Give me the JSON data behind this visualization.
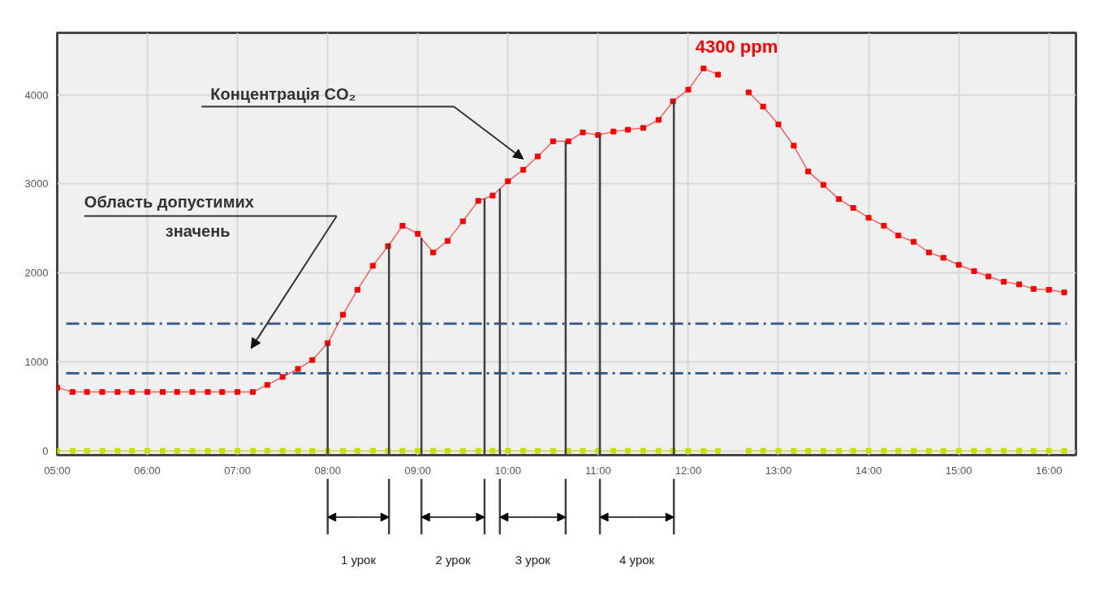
{
  "chart_data": {
    "type": "line",
    "x": [
      5.0,
      5.17,
      5.33,
      5.5,
      5.67,
      5.83,
      6.0,
      6.17,
      6.33,
      6.5,
      6.67,
      6.83,
      7.0,
      7.17,
      7.33,
      7.5,
      7.67,
      7.83,
      8.0,
      8.17,
      8.33,
      8.5,
      8.67,
      8.83,
      9.0,
      9.17,
      9.33,
      9.5,
      9.67,
      9.83,
      10.0,
      10.17,
      10.33,
      10.5,
      10.67,
      10.83,
      11.0,
      11.17,
      11.33,
      11.5,
      11.67,
      11.83,
      12.0,
      12.17,
      12.33,
      12.5,
      12.67,
      12.83,
      13.0,
      13.17,
      13.33,
      13.5,
      13.67,
      13.83,
      14.0,
      14.17,
      14.33,
      14.5,
      14.67,
      14.83,
      15.0,
      15.17,
      15.33,
      15.5,
      15.67,
      15.83,
      16.0,
      16.17
    ],
    "series": [
      {
        "color": "#ff0000",
        "values": [
          710,
          660,
          660,
          660,
          660,
          660,
          660,
          660,
          660,
          660,
          660,
          660,
          660,
          660,
          740,
          830,
          920,
          1020,
          1210,
          1530,
          1810,
          2080,
          2300,
          2530,
          2440,
          2230,
          2360,
          2580,
          2810,
          2870,
          3030,
          3160,
          3310,
          3480,
          3480,
          3580,
          3550,
          3590,
          3610,
          3630,
          3720,
          3930,
          4060,
          4300,
          4230,
          null,
          4030,
          3870,
          3670,
          3430,
          3140,
          2990,
          2830,
          2730,
          2620,
          2530,
          2420,
          2350,
          2230,
          2170,
          2090,
          2020,
          1960,
          1900,
          1870,
          1820,
          1810,
          1780
        ]
      },
      {
        "color": "#c8e000",
        "values": [
          0,
          0,
          0,
          0,
          0,
          0,
          0,
          0,
          0,
          0,
          0,
          0,
          0,
          0,
          0,
          0,
          0,
          0,
          0,
          0,
          0,
          0,
          0,
          0,
          0,
          0,
          0,
          0,
          0,
          0,
          0,
          0,
          0,
          0,
          0,
          0,
          0,
          0,
          0,
          0,
          0,
          0,
          0,
          0,
          0,
          null,
          0,
          0,
          0,
          0,
          0,
          0,
          0,
          0,
          0,
          0,
          0,
          0,
          0,
          0,
          0,
          0,
          0,
          0,
          0,
          0,
          0,
          0
        ]
      }
    ],
    "xlim": [
      5,
      16.3
    ],
    "ylim": [
      -50,
      4700
    ],
    "xticks": [
      {
        "value": 5,
        "label": "05:00"
      },
      {
        "value": 6,
        "label": "06:00"
      },
      {
        "value": 7,
        "label": "07:00"
      },
      {
        "value": 8,
        "label": "08:00"
      },
      {
        "value": 9,
        "label": "09:00"
      },
      {
        "value": 10,
        "label": "10:00"
      },
      {
        "value": 11,
        "label": "11:00"
      },
      {
        "value": 12,
        "label": "12:00"
      },
      {
        "value": 13,
        "label": "13:00"
      },
      {
        "value": 14,
        "label": "14:00"
      },
      {
        "value": 15,
        "label": "15:00"
      },
      {
        "value": 16,
        "label": "16:00"
      }
    ],
    "yticks": [
      0,
      1000,
      2000,
      3000,
      4000
    ],
    "grid": true,
    "marker": "square",
    "annotations": [
      {
        "text": "4300 ppm",
        "x": 12.17,
        "y": 4300
      },
      "Концентрація CO₂",
      "Область допустимих значень",
      "1 урок",
      "2 урок",
      "3 урок",
      "4 урок"
    ],
    "ref_lines": [
      {
        "axis": "y",
        "value": 1430,
        "label": null,
        "color": "#3a5f8f",
        "line_style": "dashed"
      },
      {
        "axis": "y",
        "value": 870,
        "label": null,
        "color": "#3a5f8f",
        "line_style": "dashed"
      },
      {
        "axis": "x",
        "value": 8.0,
        "label": null,
        "color": "#404040"
      },
      {
        "axis": "x",
        "value": 8.68,
        "label": null,
        "color": "#404040"
      },
      {
        "axis": "x",
        "value": 9.04,
        "label": null,
        "color": "#404040"
      },
      {
        "axis": "x",
        "value": 9.74,
        "label": null,
        "color": "#404040"
      },
      {
        "axis": "x",
        "value": 9.91,
        "label": null,
        "color": "#404040"
      },
      {
        "axis": "x",
        "value": 10.64,
        "label": null,
        "color": "#404040"
      },
      {
        "axis": "x",
        "value": 11.02,
        "label": null,
        "color": "#404040"
      },
      {
        "axis": "x",
        "value": 11.84,
        "label": null,
        "color": "#404040"
      }
    ]
  }
}
